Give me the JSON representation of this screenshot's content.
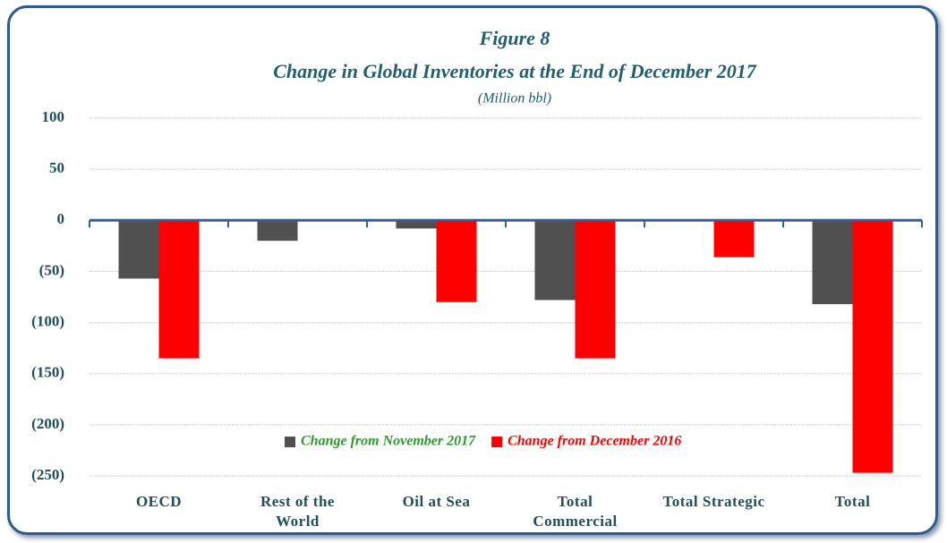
{
  "chart_data": {
    "type": "bar",
    "title": "Figure 8",
    "subtitle": "Change in Global Inventories at the End of  December  2017",
    "unit_label": "(Million bbl)",
    "categories": [
      "OECD",
      "Rest of the World",
      "Oil at Sea",
      "Total Commercial",
      "Total Strategic",
      "Total"
    ],
    "series": [
      {
        "name": "Change from November 2017",
        "color": "#505050",
        "values": [
          -57,
          -20,
          -8,
          -78,
          0,
          -82
        ]
      },
      {
        "name": "Change from December 2016",
        "color": "#ff0000",
        "values": [
          -135,
          0,
          -80,
          -135,
          -36,
          -247
        ]
      }
    ],
    "ylim": [
      -250,
      100
    ],
    "yticks": [
      100,
      50,
      0,
      {
        "value": -50,
        "label": "(50)"
      },
      {
        "value": -100,
        "label": "(100)"
      },
      {
        "value": -150,
        "label": "(150)"
      },
      {
        "value": -200,
        "label": "(200)"
      },
      {
        "value": -250,
        "label": "(250)"
      }
    ],
    "grid": true,
    "legend": "bottom"
  }
}
